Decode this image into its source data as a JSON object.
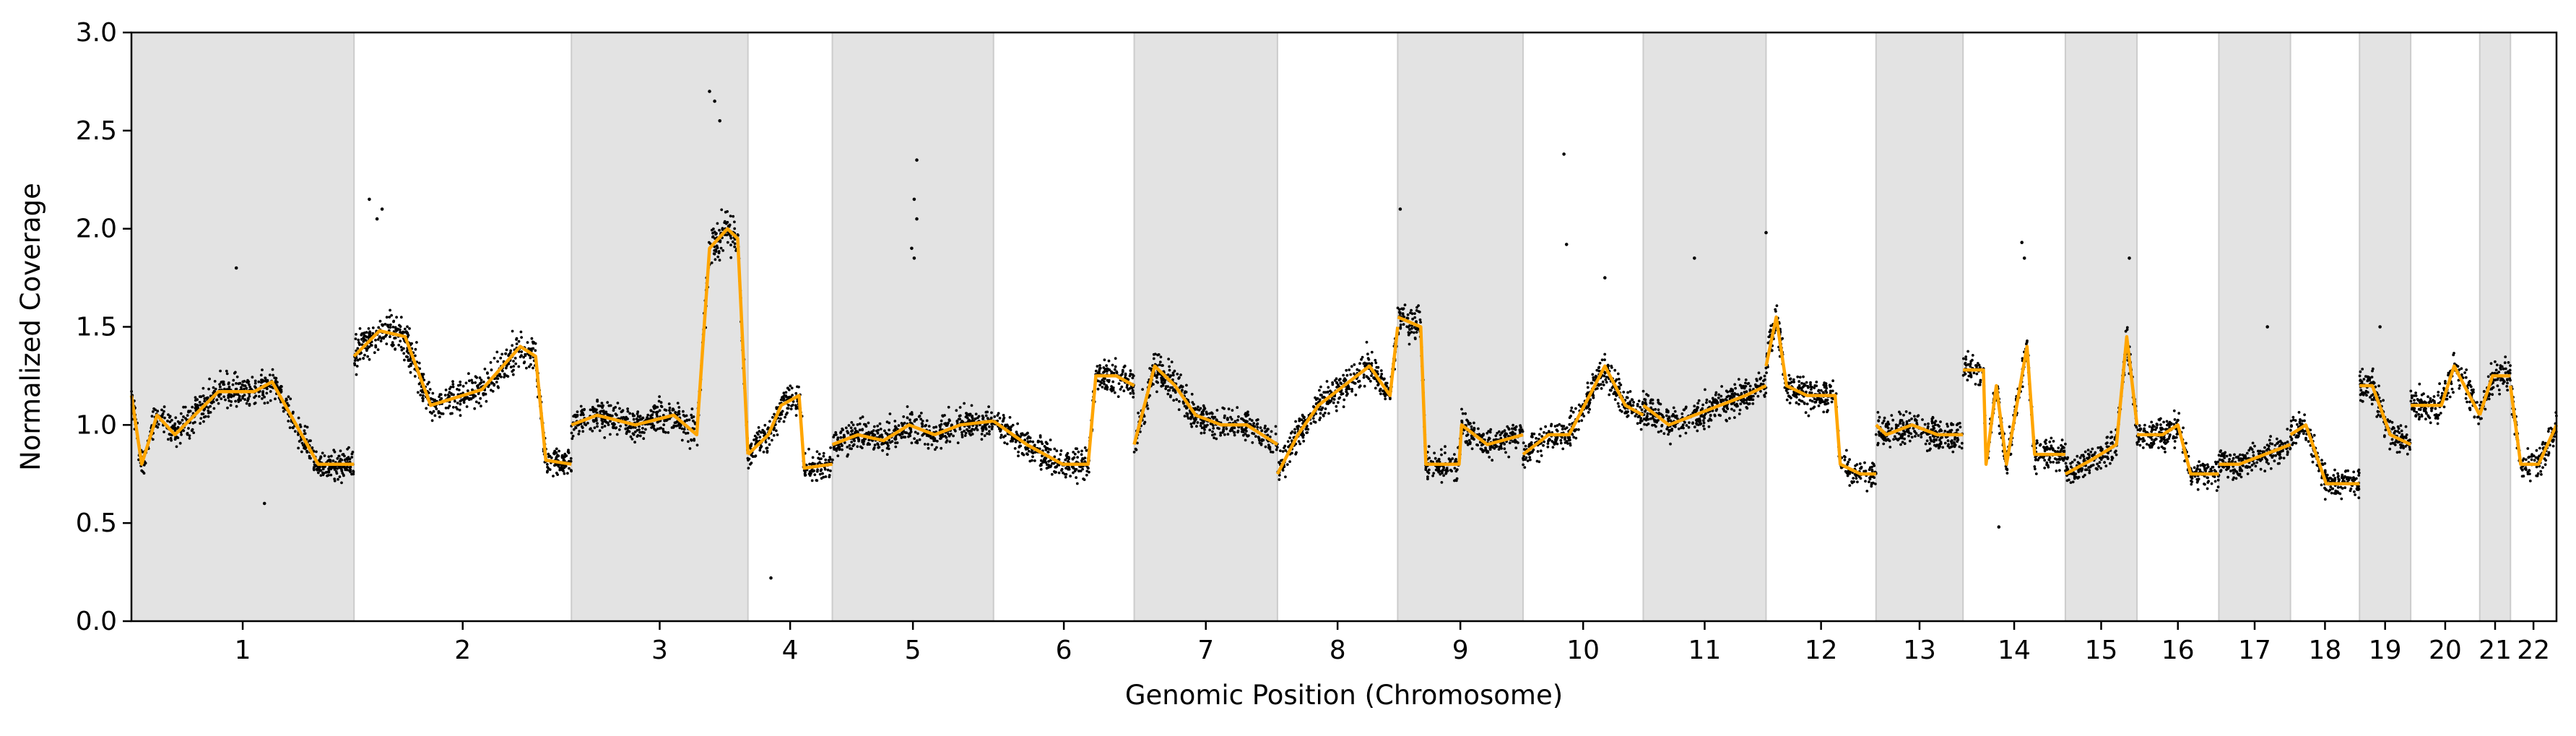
{
  "chart_data": {
    "type": "scatter",
    "title": "",
    "xlabel": "Genomic Position (Chromosome)",
    "ylabel": "Normalized Coverage",
    "ylim": [
      0.0,
      3.0
    ],
    "yticks": [
      "0.0",
      "0.5",
      "1.0",
      "1.5",
      "2.0",
      "2.5",
      "3.0"
    ],
    "grid": false,
    "legend": "none",
    "colors": {
      "points": "#000000",
      "smoothed_line": "#ffa500",
      "alternate_band": "#e3e3e3",
      "band_edge": "#cccccc"
    },
    "chromosomes": [
      {
        "label": "1",
        "start": 0.0,
        "end": 8.7,
        "shaded": true,
        "segments": [
          [
            0.0,
            1.15
          ],
          [
            0.4,
            0.8
          ],
          [
            1.0,
            1.05
          ],
          [
            1.7,
            0.95
          ],
          [
            3.4,
            1.17
          ],
          [
            4.8,
            1.17
          ],
          [
            5.5,
            1.22
          ],
          [
            7.3,
            0.8
          ],
          [
            8.7,
            0.8
          ]
        ]
      },
      {
        "label": "2",
        "start": 8.7,
        "end": 17.2,
        "shaded": false,
        "segments": [
          [
            8.7,
            1.35
          ],
          [
            9.7,
            1.48
          ],
          [
            10.7,
            1.45
          ],
          [
            11.7,
            1.1
          ],
          [
            13.7,
            1.18
          ],
          [
            15.2,
            1.4
          ],
          [
            15.8,
            1.35
          ],
          [
            16.2,
            0.82
          ],
          [
            17.2,
            0.8
          ]
        ]
      },
      {
        "label": "3",
        "start": 17.2,
        "end": 24.1,
        "shaded": true,
        "segments": [
          [
            17.2,
            1.0
          ],
          [
            18.2,
            1.05
          ],
          [
            19.7,
            1.0
          ],
          [
            21.2,
            1.05
          ],
          [
            22.1,
            0.95
          ],
          [
            22.6,
            1.9
          ],
          [
            23.3,
            2.0
          ],
          [
            23.7,
            1.95
          ],
          [
            24.1,
            0.85
          ]
        ]
      },
      {
        "label": "4",
        "start": 24.1,
        "end": 27.4,
        "shaded": false,
        "segments": [
          [
            24.1,
            0.85
          ],
          [
            24.9,
            0.95
          ],
          [
            25.4,
            1.1
          ],
          [
            26.1,
            1.15
          ],
          [
            26.3,
            0.78
          ],
          [
            27.4,
            0.8
          ]
        ]
      },
      {
        "label": "5",
        "start": 27.4,
        "end": 33.7,
        "shaded": true,
        "segments": [
          [
            27.4,
            0.9
          ],
          [
            28.4,
            0.95
          ],
          [
            29.4,
            0.92
          ],
          [
            30.4,
            1.0
          ],
          [
            31.4,
            0.95
          ],
          [
            32.4,
            1.0
          ],
          [
            33.7,
            1.02
          ]
        ]
      },
      {
        "label": "6",
        "start": 33.7,
        "end": 39.2,
        "shaded": false,
        "segments": [
          [
            33.7,
            1.02
          ],
          [
            35.0,
            0.9
          ],
          [
            36.4,
            0.8
          ],
          [
            37.4,
            0.8
          ],
          [
            37.7,
            1.25
          ],
          [
            38.5,
            1.25
          ],
          [
            39.2,
            1.2
          ]
        ]
      },
      {
        "label": "7",
        "start": 39.2,
        "end": 44.8,
        "shaded": true,
        "segments": [
          [
            39.2,
            0.9
          ],
          [
            40.0,
            1.3
          ],
          [
            40.8,
            1.2
          ],
          [
            41.6,
            1.05
          ],
          [
            42.6,
            1.0
          ],
          [
            43.6,
            1.0
          ],
          [
            44.8,
            0.9
          ]
        ]
      },
      {
        "label": "8",
        "start": 44.8,
        "end": 49.5,
        "shaded": false,
        "segments": [
          [
            44.8,
            0.75
          ],
          [
            45.6,
            0.95
          ],
          [
            46.4,
            1.1
          ],
          [
            47.4,
            1.2
          ],
          [
            48.4,
            1.3
          ],
          [
            49.2,
            1.15
          ],
          [
            49.5,
            1.5
          ]
        ]
      },
      {
        "label": "9",
        "start": 49.5,
        "end": 54.4,
        "shaded": true,
        "segments": [
          [
            49.5,
            1.55
          ],
          [
            50.4,
            1.5
          ],
          [
            50.6,
            0.8
          ],
          [
            51.9,
            0.8
          ],
          [
            52.0,
            1.0
          ],
          [
            53.0,
            0.9
          ],
          [
            54.4,
            0.95
          ]
        ]
      },
      {
        "label": "10",
        "start": 54.4,
        "end": 59.1,
        "shaded": false,
        "segments": [
          [
            54.4,
            0.85
          ],
          [
            55.4,
            0.95
          ],
          [
            56.2,
            0.95
          ],
          [
            57.0,
            1.15
          ],
          [
            57.6,
            1.3
          ],
          [
            58.4,
            1.1
          ],
          [
            59.1,
            1.05
          ]
        ]
      },
      {
        "label": "11",
        "start": 59.1,
        "end": 63.9,
        "shaded": true,
        "segments": [
          [
            59.1,
            1.1
          ],
          [
            60.1,
            1.0
          ],
          [
            61.1,
            1.05
          ],
          [
            62.1,
            1.1
          ],
          [
            63.1,
            1.15
          ],
          [
            63.9,
            1.2
          ]
        ]
      },
      {
        "label": "12",
        "start": 63.9,
        "end": 68.2,
        "shaded": false,
        "segments": [
          [
            63.9,
            1.3
          ],
          [
            64.3,
            1.55
          ],
          [
            64.7,
            1.2
          ],
          [
            65.5,
            1.15
          ],
          [
            66.6,
            1.15
          ],
          [
            66.8,
            0.8
          ],
          [
            67.6,
            0.75
          ],
          [
            68.2,
            0.75
          ]
        ]
      },
      {
        "label": "13",
        "start": 68.2,
        "end": 71.6,
        "shaded": true,
        "segments": [
          [
            68.2,
            1.0
          ],
          [
            68.6,
            0.95
          ],
          [
            69.6,
            1.0
          ],
          [
            70.6,
            0.95
          ],
          [
            71.6,
            0.95
          ]
        ]
      },
      {
        "label": "14",
        "start": 71.6,
        "end": 75.6,
        "shaded": false,
        "segments": [
          [
            71.6,
            1.28
          ],
          [
            72.4,
            1.28
          ],
          [
            72.5,
            0.8
          ],
          [
            72.9,
            1.2
          ],
          [
            73.3,
            0.8
          ],
          [
            74.1,
            1.4
          ],
          [
            74.4,
            0.85
          ],
          [
            75.6,
            0.85
          ]
        ]
      },
      {
        "label": "15",
        "start": 75.6,
        "end": 78.4,
        "shaded": true,
        "segments": [
          [
            75.6,
            0.75
          ],
          [
            76.6,
            0.82
          ],
          [
            77.6,
            0.9
          ],
          [
            78.0,
            1.45
          ],
          [
            78.4,
            1.0
          ]
        ]
      },
      {
        "label": "16",
        "start": 78.4,
        "end": 81.6,
        "shaded": false,
        "segments": [
          [
            78.4,
            0.95
          ],
          [
            79.4,
            0.95
          ],
          [
            80.0,
            1.0
          ],
          [
            80.5,
            0.75
          ],
          [
            81.6,
            0.75
          ]
        ]
      },
      {
        "label": "17",
        "start": 81.6,
        "end": 84.4,
        "shaded": true,
        "segments": [
          [
            81.6,
            0.8
          ],
          [
            82.4,
            0.8
          ],
          [
            83.4,
            0.85
          ],
          [
            84.4,
            0.9
          ]
        ]
      },
      {
        "label": "18",
        "start": 84.4,
        "end": 87.1,
        "shaded": false,
        "segments": [
          [
            84.4,
            0.95
          ],
          [
            85.0,
            1.0
          ],
          [
            85.8,
            0.7
          ],
          [
            87.1,
            0.7
          ]
        ]
      },
      {
        "label": "19",
        "start": 87.1,
        "end": 89.1,
        "shaded": true,
        "segments": [
          [
            87.1,
            1.2
          ],
          [
            87.6,
            1.2
          ],
          [
            88.3,
            0.95
          ],
          [
            89.1,
            0.9
          ]
        ]
      },
      {
        "label": "20",
        "start": 89.1,
        "end": 91.8,
        "shaded": false,
        "segments": [
          [
            89.1,
            1.1
          ],
          [
            90.3,
            1.1
          ],
          [
            90.8,
            1.3
          ],
          [
            91.8,
            1.05
          ]
        ]
      },
      {
        "label": "21",
        "start": 91.8,
        "end": 93.0,
        "shaded": true,
        "segments": [
          [
            91.8,
            1.05
          ],
          [
            92.3,
            1.25
          ],
          [
            93.0,
            1.25
          ]
        ]
      },
      {
        "label": "22",
        "start": 93.0,
        "end": 94.8,
        "shaded": false,
        "segments": [
          [
            93.0,
            1.2
          ],
          [
            93.4,
            0.8
          ],
          [
            94.1,
            0.8
          ],
          [
            94.8,
            1.0
          ]
        ]
      }
    ],
    "outliers": [
      {
        "x": 4.1,
        "y": 1.8
      },
      {
        "x": 5.2,
        "y": 0.6
      },
      {
        "x": 9.3,
        "y": 2.15
      },
      {
        "x": 9.8,
        "y": 2.1
      },
      {
        "x": 9.6,
        "y": 2.05
      },
      {
        "x": 22.6,
        "y": 2.7
      },
      {
        "x": 22.8,
        "y": 2.65
      },
      {
        "x": 23.0,
        "y": 2.55
      },
      {
        "x": 25.0,
        "y": 0.22
      },
      {
        "x": 30.7,
        "y": 2.35
      },
      {
        "x": 30.6,
        "y": 2.15
      },
      {
        "x": 30.7,
        "y": 2.05
      },
      {
        "x": 30.5,
        "y": 1.9
      },
      {
        "x": 30.6,
        "y": 1.85
      },
      {
        "x": 49.6,
        "y": 2.1
      },
      {
        "x": 56.0,
        "y": 2.38
      },
      {
        "x": 56.1,
        "y": 1.92
      },
      {
        "x": 57.6,
        "y": 1.75
      },
      {
        "x": 61.1,
        "y": 1.85
      },
      {
        "x": 63.9,
        "y": 1.98
      },
      {
        "x": 73.0,
        "y": 0.48
      },
      {
        "x": 73.9,
        "y": 1.93
      },
      {
        "x": 74.0,
        "y": 1.85
      },
      {
        "x": 78.1,
        "y": 1.85
      },
      {
        "x": 83.5,
        "y": 1.5
      },
      {
        "x": 87.9,
        "y": 1.5
      }
    ]
  }
}
